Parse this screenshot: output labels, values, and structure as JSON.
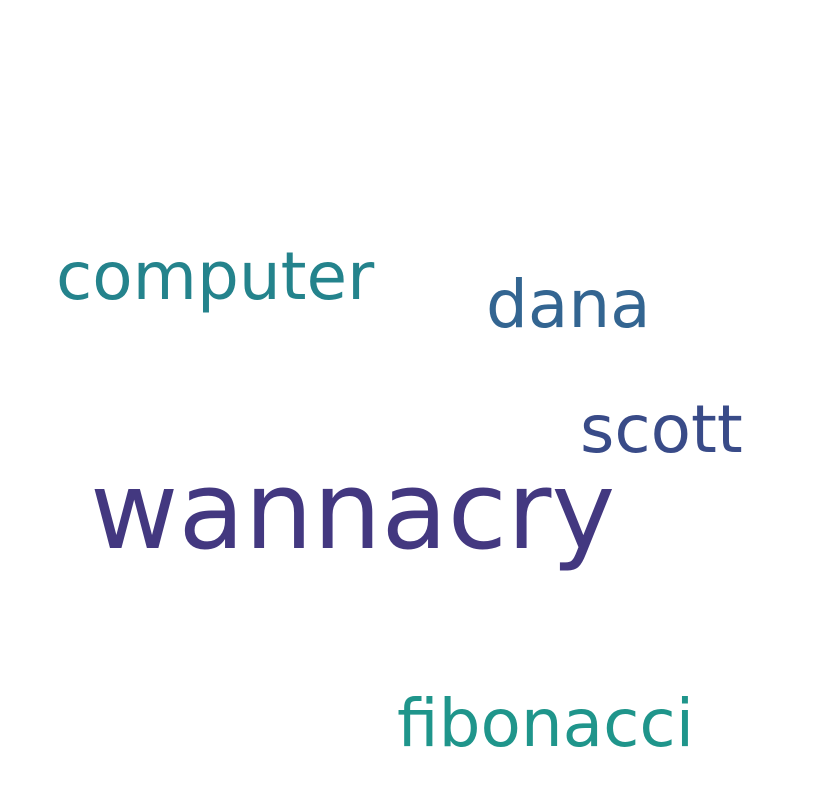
{
  "words": [
    {
      "text": "wannacry",
      "color": "#433880"
    },
    {
      "text": "computer",
      "color": "#24838c"
    },
    {
      "text": "dana",
      "color": "#336591"
    },
    {
      "text": "scott",
      "color": "#394b88"
    },
    {
      "text": "fibonacci",
      "color": "#1f958b"
    }
  ]
}
